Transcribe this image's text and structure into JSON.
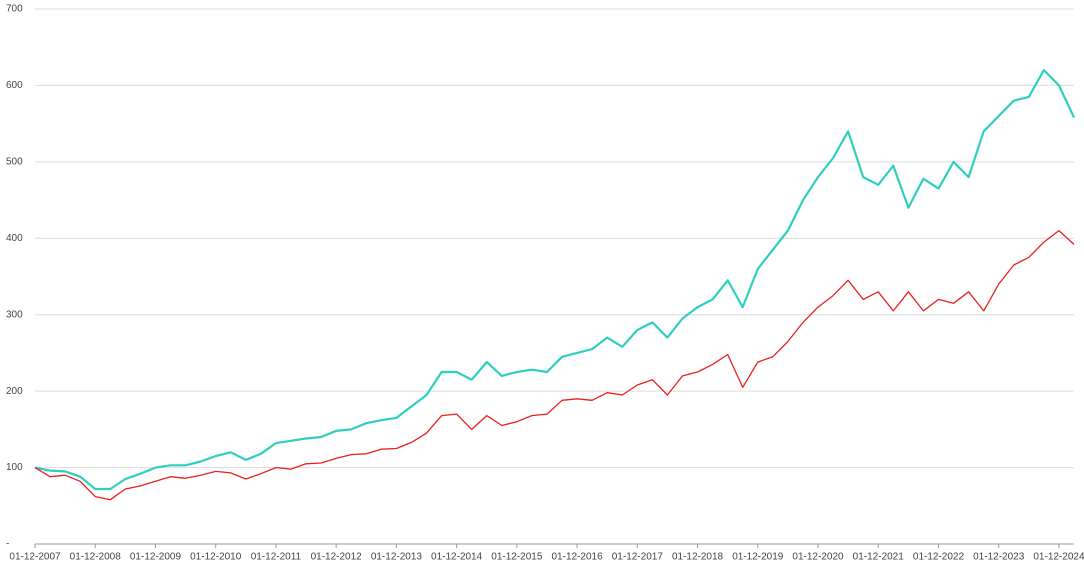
{
  "chart_data": {
    "type": "line",
    "categories": [
      "01-12-2007",
      null,
      null,
      null,
      "01-12-2008",
      null,
      null,
      null,
      "01-12-2009",
      null,
      null,
      null,
      "01-12-2010",
      null,
      null,
      null,
      "01-12-2011",
      null,
      null,
      null,
      "01-12-2012",
      null,
      null,
      null,
      "01-12-2013",
      null,
      null,
      null,
      "01-12-2014",
      null,
      null,
      null,
      "01-12-2015",
      null,
      null,
      null,
      "01-12-2016",
      null,
      null,
      null,
      "01-12-2017",
      null,
      null,
      null,
      "01-12-2018",
      null,
      null,
      null,
      "01-12-2019",
      null,
      null,
      null,
      "01-12-2020",
      null,
      null,
      null,
      "01-12-2021",
      null,
      null,
      null,
      "01-12-2022",
      null,
      null,
      null,
      "01-12-2023",
      null,
      null,
      null,
      "01-12-2024",
      null
    ],
    "series": [
      {
        "color": "#2ecfbf",
        "values": [
          100,
          96,
          95,
          88,
          72,
          72,
          85,
          92,
          100,
          103,
          103,
          108,
          115,
          120,
          110,
          118,
          132,
          135,
          138,
          140,
          148,
          150,
          158,
          162,
          165,
          180,
          195,
          225,
          225,
          215,
          238,
          220,
          225,
          228,
          225,
          245,
          250,
          255,
          270,
          258,
          280,
          290,
          270,
          295,
          310,
          320,
          345,
          310,
          360,
          385,
          410,
          450,
          480,
          505,
          540,
          480,
          470,
          495,
          440,
          478,
          465,
          500,
          480,
          540,
          560,
          580,
          585,
          620,
          600,
          558
        ]
      },
      {
        "color": "#e8201f",
        "values": [
          100,
          88,
          90,
          82,
          62,
          58,
          72,
          76,
          82,
          88,
          86,
          90,
          95,
          93,
          85,
          92,
          100,
          98,
          105,
          106,
          112,
          117,
          118,
          124,
          125,
          133,
          145,
          168,
          170,
          150,
          168,
          155,
          160,
          168,
          170,
          188,
          190,
          188,
          198,
          195,
          208,
          215,
          195,
          220,
          225,
          235,
          248,
          205,
          238,
          245,
          265,
          290,
          310,
          325,
          345,
          320,
          330,
          305,
          330,
          305,
          320,
          315,
          330,
          305,
          340,
          365,
          375,
          395,
          410,
          392
        ]
      }
    ],
    "ylim": [
      0,
      700
    ],
    "yticks": [
      {
        "value": 0,
        "label": "-"
      },
      100,
      200,
      300,
      400,
      500,
      600,
      700
    ],
    "grid": true
  }
}
